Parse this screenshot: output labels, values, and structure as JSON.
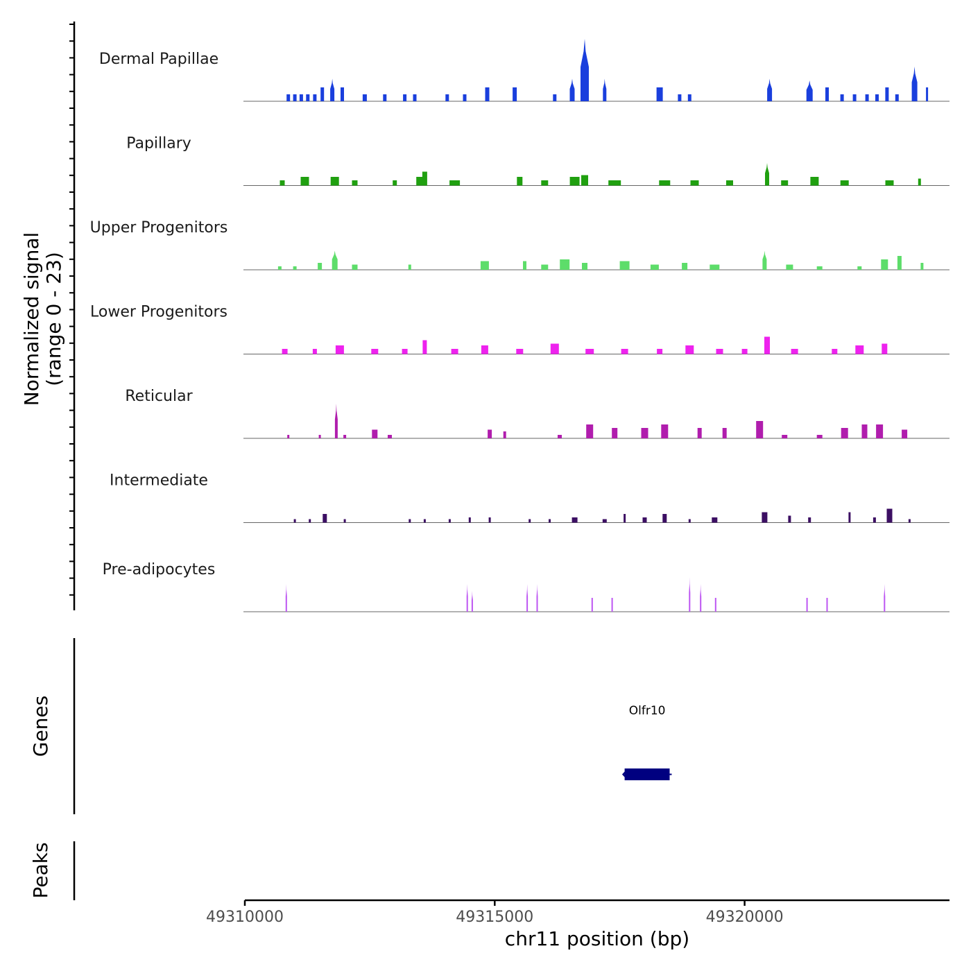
{
  "chart_data": {
    "type": "area",
    "title": "",
    "ylabel_line1": "Normalized signal",
    "ylabel_line2": "(range 0 - 23)",
    "ylim": [
      0,
      23
    ],
    "xlabel": "chr11 position (bp)",
    "xlim": [
      49310000,
      49324100
    ],
    "xticks": [
      {
        "value": 49310000,
        "label": "49310000"
      },
      {
        "value": 49315000,
        "label": "49315000"
      },
      {
        "value": 49320000,
        "label": "49320000"
      }
    ],
    "signal_max": 23,
    "tracks": [
      {
        "name": "Dermal Papillae",
        "color": "#1a3fdd",
        "peaks": [
          [
            49310870,
            5,
            2
          ],
          [
            49311000,
            5,
            2
          ],
          [
            49311130,
            5,
            2
          ],
          [
            49311260,
            5,
            2
          ],
          [
            49311400,
            5,
            2
          ],
          [
            49311550,
            5,
            4
          ],
          [
            49311750,
            6,
            6.5
          ],
          [
            49311950,
            5,
            4
          ],
          [
            49312400,
            6,
            2
          ],
          [
            49312800,
            5,
            2
          ],
          [
            49313200,
            5,
            2
          ],
          [
            49313400,
            5,
            2
          ],
          [
            49314050,
            5,
            2
          ],
          [
            49314400,
            5,
            2
          ],
          [
            49314850,
            6,
            4
          ],
          [
            49315400,
            6,
            4
          ],
          [
            49316200,
            5,
            2
          ],
          [
            49316550,
            7,
            6.5
          ],
          [
            49316800,
            12,
            18
          ],
          [
            49317200,
            5,
            6.5
          ],
          [
            49318300,
            9,
            4
          ],
          [
            49318700,
            5,
            2
          ],
          [
            49318900,
            5,
            2
          ],
          [
            49320500,
            7,
            6.5
          ],
          [
            49321300,
            9,
            6
          ],
          [
            49321650,
            5,
            4
          ],
          [
            49321950,
            5,
            2
          ],
          [
            49322200,
            5,
            2
          ],
          [
            49322450,
            5,
            2
          ],
          [
            49322650,
            5,
            2
          ],
          [
            49322850,
            5,
            4
          ],
          [
            49323050,
            5,
            2
          ],
          [
            49323400,
            8,
            10
          ],
          [
            49323650,
            3,
            4
          ]
        ]
      },
      {
        "name": "Papillary",
        "color": "#20a010",
        "peaks": [
          [
            49310750,
            7,
            1.5
          ],
          [
            49311200,
            12,
            2.5
          ],
          [
            49311800,
            12,
            2.5
          ],
          [
            49312200,
            8,
            1.5
          ],
          [
            49313000,
            6,
            1.5
          ],
          [
            49313500,
            10,
            2.5
          ],
          [
            49313600,
            7,
            4
          ],
          [
            49314200,
            15,
            1.5
          ],
          [
            49315500,
            8,
            2.5
          ],
          [
            49316000,
            10,
            1.5
          ],
          [
            49316600,
            14,
            2.5
          ],
          [
            49316800,
            10,
            3
          ],
          [
            49317400,
            18,
            1.5
          ],
          [
            49318400,
            16,
            1.5
          ],
          [
            49319000,
            12,
            1.5
          ],
          [
            49319700,
            10,
            1.5
          ],
          [
            49320450,
            6,
            6.5
          ],
          [
            49320800,
            10,
            1.5
          ],
          [
            49321400,
            12,
            2.5
          ],
          [
            49322000,
            12,
            1.5
          ],
          [
            49322900,
            12,
            1.5
          ],
          [
            49323500,
            4,
            2
          ]
        ]
      },
      {
        "name": "Upper Progenitors",
        "color": "#5ddd6a",
        "peaks": [
          [
            49310700,
            5,
            1
          ],
          [
            49311000,
            5,
            1
          ],
          [
            49311500,
            6,
            2
          ],
          [
            49311800,
            8,
            5.5
          ],
          [
            49312200,
            8,
            1.5
          ],
          [
            49313300,
            4,
            1.5
          ],
          [
            49314800,
            12,
            2.5
          ],
          [
            49315600,
            5,
            2.5
          ],
          [
            49316000,
            10,
            1.5
          ],
          [
            49316400,
            14,
            3
          ],
          [
            49316800,
            8,
            2
          ],
          [
            49317600,
            14,
            2.5
          ],
          [
            49318200,
            12,
            1.5
          ],
          [
            49318800,
            8,
            2
          ],
          [
            49319400,
            14,
            1.5
          ],
          [
            49320400,
            6,
            5.5
          ],
          [
            49320900,
            10,
            1.5
          ],
          [
            49321500,
            8,
            1
          ],
          [
            49322300,
            6,
            1
          ],
          [
            49322800,
            10,
            3
          ],
          [
            49323100,
            6,
            4
          ],
          [
            49323550,
            4,
            2
          ]
        ]
      },
      {
        "name": "Lower Progenitors",
        "color": "#ee22ee",
        "peaks": [
          [
            49310800,
            8,
            1.5
          ],
          [
            49311400,
            6,
            1.5
          ],
          [
            49311900,
            12,
            2.5
          ],
          [
            49312600,
            10,
            1.5
          ],
          [
            49313200,
            8,
            1.5
          ],
          [
            49313600,
            6,
            4
          ],
          [
            49314200,
            10,
            1.5
          ],
          [
            49314800,
            10,
            2.5
          ],
          [
            49315500,
            10,
            1.5
          ],
          [
            49316200,
            12,
            3
          ],
          [
            49316900,
            12,
            1.5
          ],
          [
            49317600,
            10,
            1.5
          ],
          [
            49318300,
            8,
            1.5
          ],
          [
            49318900,
            12,
            2.5
          ],
          [
            49319500,
            10,
            1.5
          ],
          [
            49320000,
            8,
            1.5
          ],
          [
            49320450,
            8,
            5
          ],
          [
            49321000,
            10,
            1.5
          ],
          [
            49321800,
            8,
            1.5
          ],
          [
            49322300,
            12,
            2.5
          ],
          [
            49322800,
            8,
            3
          ]
        ]
      },
      {
        "name": "Reticular",
        "color": "#b01dad",
        "peaks": [
          [
            49310870,
            3,
            1
          ],
          [
            49311500,
            3,
            1
          ],
          [
            49311830,
            4,
            10
          ],
          [
            49312000,
            4,
            1
          ],
          [
            49312600,
            8,
            2.5
          ],
          [
            49312900,
            6,
            1
          ],
          [
            49314900,
            6,
            2.5
          ],
          [
            49315200,
            4,
            2
          ],
          [
            49316300,
            6,
            1
          ],
          [
            49316900,
            10,
            4
          ],
          [
            49317400,
            8,
            3
          ],
          [
            49318000,
            10,
            3
          ],
          [
            49318400,
            10,
            4
          ],
          [
            49319100,
            6,
            3
          ],
          [
            49319600,
            6,
            3
          ],
          [
            49320300,
            10,
            5
          ],
          [
            49320800,
            8,
            1
          ],
          [
            49321500,
            8,
            1
          ],
          [
            49322000,
            10,
            3
          ],
          [
            49322400,
            8,
            4
          ],
          [
            49322700,
            10,
            4
          ],
          [
            49323200,
            8,
            2.5
          ]
        ]
      },
      {
        "name": "Intermediate",
        "color": "#3c0f63",
        "peaks": [
          [
            49311000,
            3,
            1
          ],
          [
            49311300,
            3,
            1
          ],
          [
            49311600,
            6,
            2.5
          ],
          [
            49312000,
            3,
            1
          ],
          [
            49313300,
            3,
            1
          ],
          [
            49313600,
            3,
            1
          ],
          [
            49314100,
            3,
            1
          ],
          [
            49314500,
            3,
            1.5
          ],
          [
            49314900,
            3,
            1.5
          ],
          [
            49315700,
            3,
            1
          ],
          [
            49316100,
            3,
            1
          ],
          [
            49316600,
            8,
            1.5
          ],
          [
            49317200,
            6,
            1
          ],
          [
            49317600,
            3,
            2.5
          ],
          [
            49318000,
            6,
            1.5
          ],
          [
            49318400,
            6,
            2.5
          ],
          [
            49318900,
            3,
            1
          ],
          [
            49319400,
            8,
            1.5
          ],
          [
            49320400,
            8,
            3
          ],
          [
            49320900,
            4,
            2
          ],
          [
            49321300,
            4,
            1.5
          ],
          [
            49322100,
            3,
            3
          ],
          [
            49322600,
            4,
            1.5
          ],
          [
            49322900,
            8,
            4
          ],
          [
            49323300,
            3,
            1
          ]
        ]
      },
      {
        "name": "Pre-adipocytes",
        "color": "#bd55f2",
        "peaks": [
          [
            49310830,
            2,
            8
          ],
          [
            49314450,
            2,
            8
          ],
          [
            49314550,
            2,
            6
          ],
          [
            49315650,
            2,
            8
          ],
          [
            49315850,
            2,
            8
          ],
          [
            49316950,
            2,
            4
          ],
          [
            49317350,
            2,
            4
          ],
          [
            49318900,
            2,
            10
          ],
          [
            49319120,
            2,
            8
          ],
          [
            49319420,
            2,
            4
          ],
          [
            49321250,
            2,
            4
          ],
          [
            49321650,
            2,
            4
          ],
          [
            49322800,
            2,
            8
          ]
        ]
      }
    ],
    "genes_panel_label": "Genes",
    "genes": [
      {
        "name": "Olfr10",
        "start": 49317600,
        "end": 49318500,
        "strand": "-"
      }
    ],
    "peaks_panel_label": "Peaks",
    "peak_regions": []
  }
}
